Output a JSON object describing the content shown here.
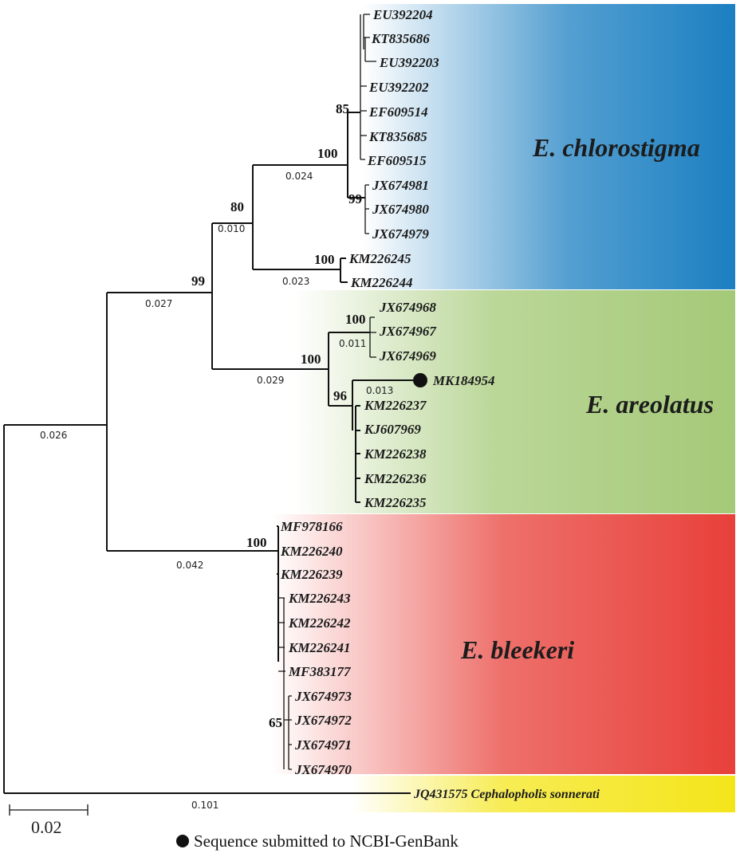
{
  "clades": {
    "chlorostigma": {
      "name": "E. chlorostigma",
      "color_start": "#ffffff",
      "color_end": "#1b7fc1",
      "tips": [
        "EU392204",
        "KT835686",
        "EU392203",
        "EU392202",
        "EF609514",
        "KT835685",
        "EF609515",
        "JX674981",
        "JX674980",
        "JX674979",
        "KM226245",
        "KM226244"
      ]
    },
    "areolatus": {
      "name": "E. areolatus",
      "color_start": "#ffffff",
      "color_end": "#a4c977",
      "tips": [
        "JX674968",
        "JX674967",
        "JX674969",
        "MK184954",
        "KM226237",
        "KJ607969",
        "KM226238",
        "KM226236",
        "KM226235"
      ]
    },
    "bleekeri": {
      "name": "E. bleekeri",
      "color_start": "#ffffff",
      "color_end": "#e8403a",
      "tips": [
        "MF978166",
        "KM226240",
        "KM226239",
        "KM226243",
        "KM226242",
        "KM226241",
        "MF383177",
        "JX674973",
        "JX674972",
        "JX674971",
        "JX674970"
      ]
    },
    "outgroup": {
      "name": "JQ431575 Cephalopholis sonnerati",
      "color_start": "#ffffff",
      "color_end": "#f4e51a"
    }
  },
  "bootstrap": {
    "b85": "85",
    "b100_chloro": "100",
    "b99_jx": "99",
    "b80": "80",
    "b100_km": "100",
    "b99_root": "99",
    "b100_jx96": "100",
    "b100_areo": "100",
    "b96": "96",
    "b100_bleek": "100",
    "b65": "65"
  },
  "branch_lengths": {
    "bl_0024": "0.024",
    "bl_0010": "0.010",
    "bl_0023": "0.023",
    "bl_0027": "0.027",
    "bl_0011": "0.011",
    "bl_0029": "0.029",
    "bl_0013": "0.013",
    "bl_0026": "0.026",
    "bl_0042": "0.042",
    "bl_0101": "0.101"
  },
  "scale_bar": {
    "label": "0.02"
  },
  "legend": {
    "text": "Sequence submitted to NCBI-GenBank",
    "marker": "filled-circle"
  }
}
